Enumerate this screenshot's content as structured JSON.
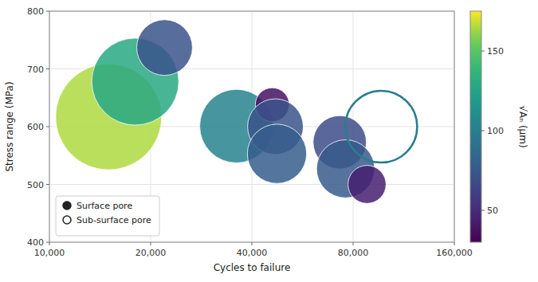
{
  "chart_data": {
    "type": "scatter",
    "series": [
      {
        "name": "Surface pore",
        "marker": "filled-circle",
        "x": [
          15000,
          18000,
          22000,
          36000,
          46000,
          47000,
          47500,
          73000,
          76000,
          88000
        ],
        "values": [
          617,
          678,
          737,
          601,
          638,
          600,
          553,
          573,
          527,
          500
        ],
        "sizes": [
          165,
          128,
          72,
          103,
          38,
          72,
          78,
          68,
          76,
          44
        ]
      },
      {
        "name": "Sub-surface pore",
        "marker": "open-circle",
        "x": [
          97000
        ],
        "values": [
          600
        ],
        "sizes": [
          100
        ]
      }
    ],
    "xlabel": "Cycles to failure",
    "ylabel": "Stress range (MPa)",
    "log": "x",
    "xlim": [
      10000,
      160000
    ],
    "xticks": [
      {
        "value": 10000,
        "label": "10,000"
      },
      {
        "value": 20000,
        "label": "20,000"
      },
      {
        "value": 40000,
        "label": "40,000"
      },
      {
        "value": 80000,
        "label": "80,000"
      },
      {
        "value": 160000,
        "label": "160,000"
      }
    ],
    "ylim": [
      400,
      800
    ],
    "yticks": [
      400,
      500,
      600,
      700,
      800
    ],
    "grid": true,
    "legend": "lower left",
    "colorbar_label": "√Aₙ (μm)",
    "colorbar_lim": [
      30,
      175
    ],
    "colorbar_ticks": [
      50,
      100,
      150
    ]
  }
}
